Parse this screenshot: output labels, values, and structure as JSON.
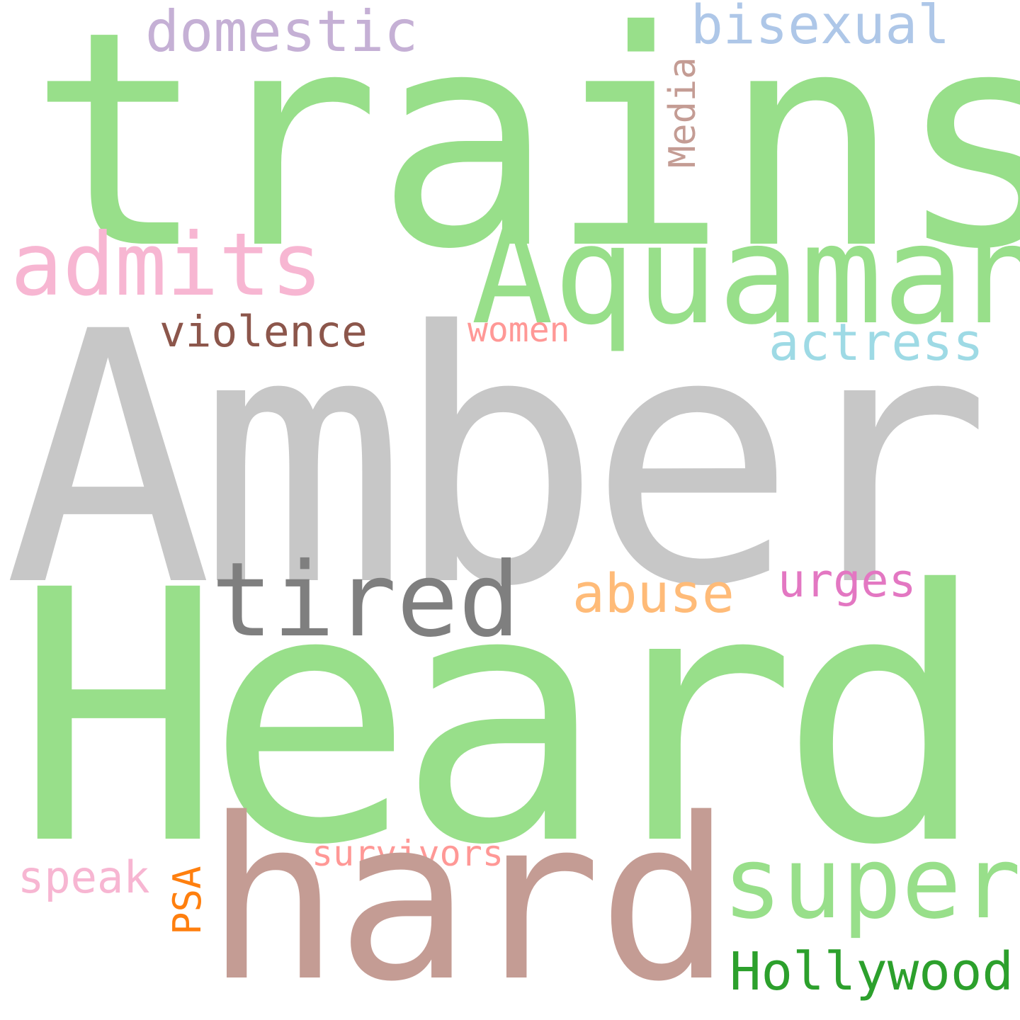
{
  "cloud": {
    "background": "#ffffff",
    "words": {
      "trains": {
        "text": "trains",
        "color": "#98df8a"
      },
      "domestic": {
        "text": "domestic",
        "color": "#c5b0d5"
      },
      "bisexual": {
        "text": "bisexual",
        "color": "#aec7e8"
      },
      "media": {
        "text": "Media",
        "color": "#c49c94"
      },
      "admits": {
        "text": "admits",
        "color": "#f7b6d2"
      },
      "aquaman": {
        "text": "Aquaman",
        "color": "#98df8a"
      },
      "violence": {
        "text": "violence",
        "color": "#8c564b"
      },
      "women": {
        "text": "women",
        "color": "#ff9896"
      },
      "actress": {
        "text": "actress",
        "color": "#9edae5"
      },
      "amber": {
        "text": "Amber",
        "color": "#c7c7c7"
      },
      "tired": {
        "text": "tired",
        "color": "#7f7f7f"
      },
      "abuse": {
        "text": "abuse",
        "color": "#ffbb78"
      },
      "urges": {
        "text": "urges",
        "color": "#e377c2"
      },
      "heard": {
        "text": "Heard",
        "color": "#98df8a"
      },
      "survivors": {
        "text": "survivors",
        "color": "#ff9896"
      },
      "speak": {
        "text": "speak",
        "color": "#f7b6d2"
      },
      "psa": {
        "text": "PSA",
        "color": "#ff7f0e"
      },
      "hard": {
        "text": "hard",
        "color": "#c49c94"
      },
      "super": {
        "text": "super",
        "color": "#98df8a"
      },
      "hollywood": {
        "text": "Hollywood",
        "color": "#2ca02c"
      }
    }
  }
}
